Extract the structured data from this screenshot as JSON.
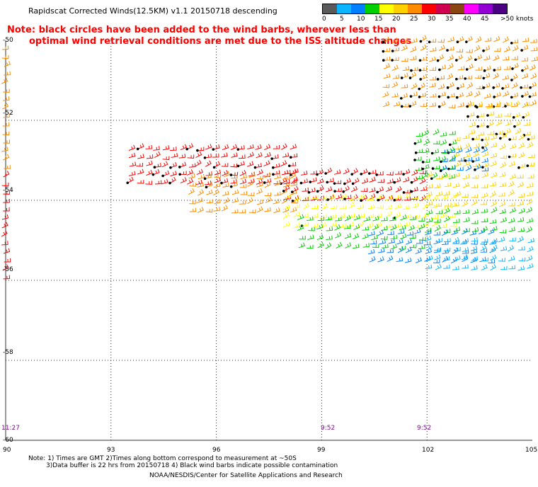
{
  "title": "Rapidscat Corrected Winds(12.5KM) v1.1 20150718 descending",
  "legend": {
    "colors": [
      "#5a5a5a",
      "#0bb5ff",
      "#0080ff",
      "#00d000",
      "#ffff00",
      "#ffd000",
      "#ff8c00",
      "#ff0000",
      "#d00050",
      "#8b4513",
      "#ff00ff",
      "#9400d3",
      "#4b0082"
    ],
    "labels": [
      "0",
      "5",
      "10",
      "15",
      "20",
      "25",
      "30",
      "35",
      "40",
      "45",
      ">50 knots"
    ]
  },
  "note": {
    "line1": "Note: black circles have been added to the wind barbs, wherever less than",
    "line2": "optimal wind retrieval conditions are met due to the ISS altitude changes"
  },
  "axes": {
    "y_labels": [
      "-50",
      "-52",
      "-54",
      "-56",
      "-58",
      "-60"
    ],
    "x_labels": [
      "90",
      "93",
      "96",
      "99",
      "102",
      "105"
    ]
  },
  "times": [
    "11:27",
    "9:52",
    "9:52"
  ],
  "footer": {
    "line1": "Note: 1) Times are GMT 2)Times along bottom correspond to measurement at ~50S",
    "line2": "3)Data buffer is 22 hrs from 20150718 4) Black wind barbs indicate possible contamination",
    "line3": "NOAA/NESDIS/Center for Satellite Applications and Research"
  },
  "map": {
    "lon_range": [
      90,
      105
    ],
    "lat_range": [
      -60,
      -50
    ],
    "grid": true,
    "speed_bands": [
      {
        "color": "#ff8c00",
        "speed": 30
      },
      {
        "color": "#ffd000",
        "speed": 25
      },
      {
        "color": "#ff0000",
        "speed": 35
      },
      {
        "color": "#ffff00",
        "speed": 20
      },
      {
        "color": "#00d000",
        "speed": 15
      },
      {
        "color": "#0080ff",
        "speed": 10
      },
      {
        "color": "#0bb5ff",
        "speed": 5
      }
    ]
  }
}
